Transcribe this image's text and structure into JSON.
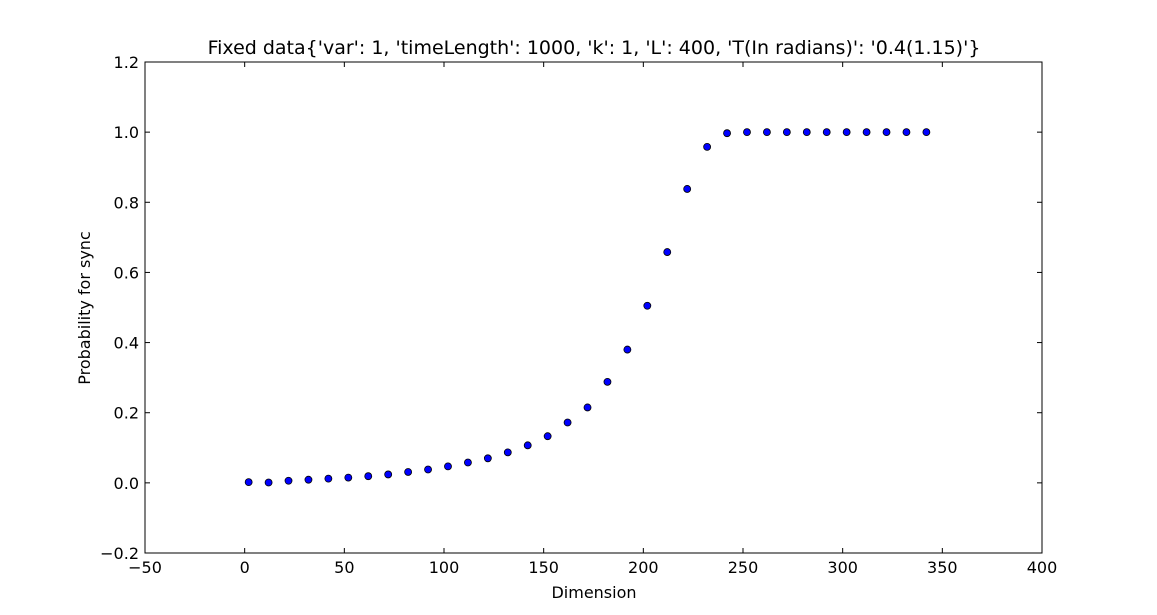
{
  "chart_data": {
    "type": "scatter",
    "title": "Fixed data{'var': 1, 'timeLength': 1000, 'k': 1, 'L': 400, 'T(In radians)': '0.4(1.15)'}",
    "xlabel": "Dimension",
    "ylabel": "Probability for sync",
    "xlim": [
      -50,
      400
    ],
    "ylim": [
      -0.2,
      1.2
    ],
    "xticks": [
      -50,
      0,
      50,
      100,
      150,
      200,
      250,
      300,
      350,
      400
    ],
    "yticks": [
      -0.2,
      0.0,
      0.2,
      0.4,
      0.6,
      0.8,
      1.0,
      1.2
    ],
    "xtick_labels": [
      "−50",
      "0",
      "50",
      "100",
      "150",
      "200",
      "250",
      "300",
      "350",
      "400"
    ],
    "ytick_labels": [
      "−0.2",
      "0.0",
      "0.2",
      "0.4",
      "0.6",
      "0.8",
      "1.0",
      "1.2"
    ],
    "grid": false,
    "marker_color": "#0000ff",
    "marker_edge_color": "#000000",
    "x": [
      2,
      12,
      22,
      32,
      42,
      52,
      62,
      72,
      82,
      92,
      102,
      112,
      122,
      132,
      142,
      152,
      162,
      172,
      182,
      192,
      202,
      212,
      222,
      232,
      242,
      252,
      262,
      272,
      282,
      292,
      302,
      312,
      322,
      332,
      342
    ],
    "y": [
      0.002,
      0.001,
      0.006,
      0.009,
      0.012,
      0.015,
      0.019,
      0.024,
      0.031,
      0.038,
      0.047,
      0.058,
      0.07,
      0.087,
      0.107,
      0.133,
      0.172,
      0.215,
      0.288,
      0.38,
      0.505,
      0.658,
      0.838,
      0.958,
      0.997,
      1.0,
      1.0,
      1.0,
      1.0,
      1.0,
      1.0,
      1.0,
      1.0,
      1.0,
      1.0
    ]
  }
}
